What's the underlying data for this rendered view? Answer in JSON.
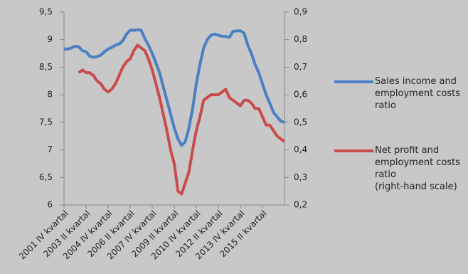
{
  "chart_data": {
    "type": "line",
    "categories": [
      "2001 IV kvartal",
      null,
      null,
      null,
      null,
      null,
      "2003 II kvartal",
      null,
      null,
      null,
      null,
      null,
      "2004 IV kvartal",
      null,
      null,
      null,
      null,
      null,
      "2006 II kvartal",
      null,
      null,
      null,
      null,
      null,
      "2007 IV kvartal",
      null,
      null,
      null,
      null,
      null,
      "2009 II kvartal",
      null,
      null,
      null,
      null,
      null,
      "2010 IV kvartal",
      null,
      null,
      null,
      null,
      null,
      "2012 II kvartal",
      null,
      null,
      null,
      null,
      null,
      "2013 IV kvartal",
      null,
      null,
      null,
      null,
      null,
      "2015 II kvartal",
      null,
      null,
      null,
      null,
      null,
      null
    ],
    "series": [
      {
        "name": "Sales income and employment costs ratio",
        "color": "#4a7fc4",
        "axis": "y",
        "values": [
          8.83,
          8.83,
          8.85,
          8.88,
          8.87,
          8.8,
          8.78,
          8.7,
          8.68,
          8.69,
          8.72,
          8.78,
          8.83,
          8.86,
          8.9,
          8.92,
          8.98,
          9.1,
          9.17,
          9.17,
          9.18,
          9.17,
          9.02,
          8.9,
          8.75,
          8.58,
          8.4,
          8.15,
          7.9,
          7.65,
          7.4,
          7.2,
          7.08,
          7.15,
          7.4,
          7.75,
          8.2,
          8.55,
          8.85,
          9.0,
          9.08,
          9.1,
          9.08,
          9.06,
          9.06,
          9.04,
          9.15,
          9.16,
          9.16,
          9.12,
          8.9,
          8.75,
          8.55,
          8.4,
          8.2,
          8.0,
          7.85,
          7.68,
          7.6,
          7.52,
          7.5
        ]
      },
      {
        "name": "Net profit and employment costs ratio\n(right-hand scale)",
        "color": "#c84c4c",
        "axis": "y2",
        "values": [
          null,
          null,
          null,
          null,
          0.68,
          0.69,
          0.68,
          0.68,
          0.67,
          0.65,
          0.64,
          0.62,
          0.61,
          0.62,
          0.64,
          0.67,
          0.7,
          0.72,
          0.73,
          0.76,
          0.78,
          0.77,
          0.76,
          0.73,
          0.69,
          0.64,
          0.59,
          0.53,
          0.47,
          0.4,
          0.35,
          0.25,
          0.24,
          0.28,
          0.32,
          0.4,
          0.47,
          0.52,
          0.58,
          0.59,
          0.6,
          0.6,
          0.6,
          0.61,
          0.62,
          0.59,
          0.58,
          0.57,
          0.56,
          0.58,
          0.58,
          0.57,
          0.55,
          0.55,
          0.52,
          0.49,
          0.49,
          0.47,
          0.45,
          0.44,
          0.43
        ]
      }
    ],
    "ylim": [
      6,
      9.5
    ],
    "yticks": [
      6,
      {
        "value": 6.5,
        "label": "6,5"
      },
      7,
      {
        "value": 7.5,
        "label": "7,5"
      },
      8,
      {
        "value": 8.5,
        "label": "8,5"
      },
      9,
      {
        "value": 9.5,
        "label": "9,5"
      }
    ],
    "y2lim": [
      0.2,
      0.9
    ],
    "y2ticks": [
      {
        "value": 0.2,
        "label": "0,2"
      },
      {
        "value": 0.3,
        "label": "0,3"
      },
      {
        "value": 0.4,
        "label": "0,4"
      },
      {
        "value": 0.5,
        "label": "0,5"
      },
      {
        "value": 0.6,
        "label": "0,6"
      },
      {
        "value": 0.7,
        "label": "0,7"
      },
      {
        "value": 0.8,
        "label": "0,8"
      },
      {
        "value": 0.9,
        "label": "0,9"
      }
    ],
    "grid": false
  }
}
